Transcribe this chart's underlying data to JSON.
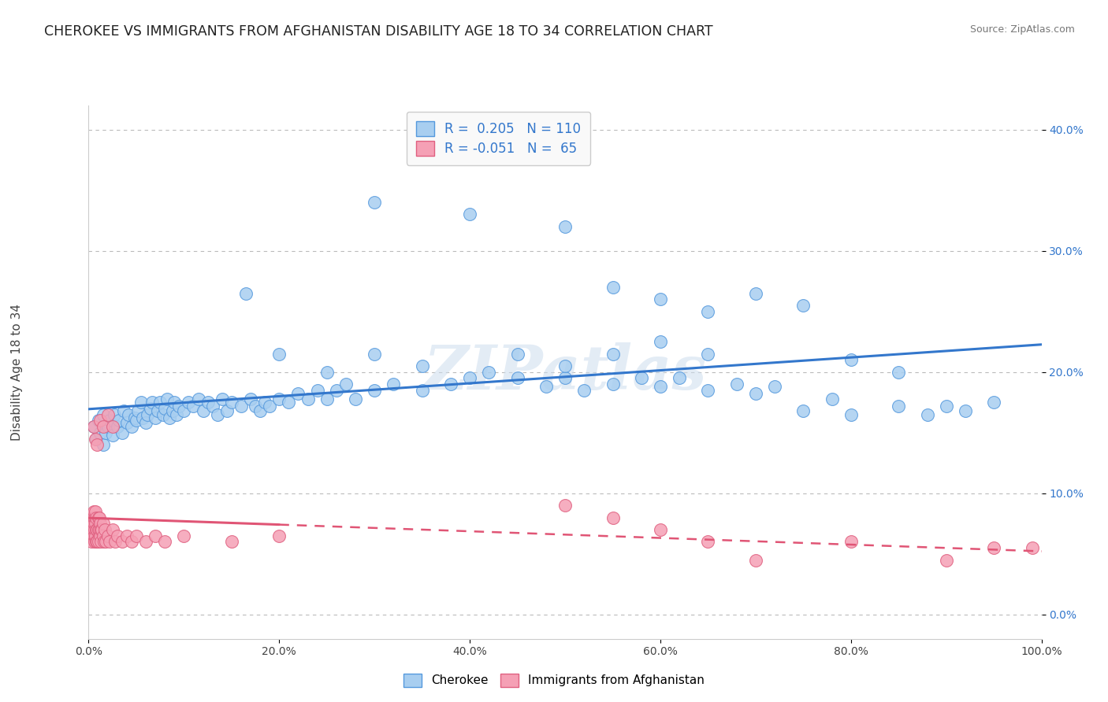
{
  "title": "CHEROKEE VS IMMIGRANTS FROM AFGHANISTAN DISABILITY AGE 18 TO 34 CORRELATION CHART",
  "source": "Source: ZipAtlas.com",
  "ylabel": "Disability Age 18 to 34",
  "r_cherokee": 0.205,
  "n_cherokee": 110,
  "r_afghanistan": -0.051,
  "n_afghanistan": 65,
  "xlim": [
    0.0,
    1.0
  ],
  "ylim": [
    -0.02,
    0.42
  ],
  "xticks": [
    0.0,
    0.2,
    0.4,
    0.6,
    0.8,
    1.0
  ],
  "yticks": [
    0.0,
    0.1,
    0.2,
    0.3,
    0.4
  ],
  "color_cherokee": "#a8cef0",
  "color_cherokee_edge": "#5599dd",
  "color_cherokee_line": "#3377cc",
  "color_afghanistan": "#f5a0b5",
  "color_afghanistan_edge": "#e06080",
  "color_afghanistan_line": "#e05575",
  "background": "#ffffff",
  "grid_color": "#bbbbbb",
  "title_color": "#222222",
  "tick_color": "#4488cc",
  "cherokee_x": [
    0.005,
    0.008,
    0.01,
    0.012,
    0.015,
    0.015,
    0.018,
    0.02,
    0.022,
    0.025,
    0.027,
    0.03,
    0.032,
    0.035,
    0.037,
    0.04,
    0.042,
    0.045,
    0.048,
    0.05,
    0.052,
    0.055,
    0.057,
    0.06,
    0.062,
    0.065,
    0.067,
    0.07,
    0.072,
    0.075,
    0.078,
    0.08,
    0.082,
    0.085,
    0.088,
    0.09,
    0.092,
    0.095,
    0.1,
    0.105,
    0.11,
    0.115,
    0.12,
    0.125,
    0.13,
    0.135,
    0.14,
    0.145,
    0.15,
    0.16,
    0.165,
    0.17,
    0.175,
    0.18,
    0.185,
    0.19,
    0.2,
    0.21,
    0.22,
    0.23,
    0.24,
    0.25,
    0.26,
    0.27,
    0.28,
    0.3,
    0.32,
    0.35,
    0.38,
    0.4,
    0.42,
    0.45,
    0.48,
    0.5,
    0.52,
    0.55,
    0.58,
    0.6,
    0.62,
    0.65,
    0.68,
    0.7,
    0.72,
    0.75,
    0.78,
    0.8,
    0.85,
    0.88,
    0.9,
    0.92,
    0.95,
    0.3,
    0.35,
    0.2,
    0.25,
    0.45,
    0.5,
    0.55,
    0.6,
    0.65,
    0.7,
    0.75,
    0.8,
    0.85,
    0.3,
    0.4,
    0.5,
    0.55,
    0.6,
    0.65
  ],
  "cherokee_y": [
    0.155,
    0.145,
    0.16,
    0.15,
    0.14,
    0.165,
    0.15,
    0.155,
    0.16,
    0.148,
    0.165,
    0.155,
    0.16,
    0.15,
    0.168,
    0.158,
    0.165,
    0.155,
    0.162,
    0.16,
    0.168,
    0.175,
    0.162,
    0.158,
    0.165,
    0.17,
    0.175,
    0.162,
    0.168,
    0.175,
    0.165,
    0.17,
    0.178,
    0.162,
    0.168,
    0.175,
    0.165,
    0.172,
    0.168,
    0.175,
    0.172,
    0.178,
    0.168,
    0.175,
    0.172,
    0.165,
    0.178,
    0.168,
    0.175,
    0.172,
    0.265,
    0.178,
    0.172,
    0.168,
    0.175,
    0.172,
    0.178,
    0.175,
    0.182,
    0.178,
    0.185,
    0.178,
    0.185,
    0.19,
    0.178,
    0.185,
    0.19,
    0.185,
    0.19,
    0.195,
    0.2,
    0.195,
    0.188,
    0.195,
    0.185,
    0.19,
    0.195,
    0.188,
    0.195,
    0.185,
    0.19,
    0.182,
    0.188,
    0.168,
    0.178,
    0.165,
    0.172,
    0.165,
    0.172,
    0.168,
    0.175,
    0.215,
    0.205,
    0.215,
    0.2,
    0.215,
    0.205,
    0.215,
    0.225,
    0.215,
    0.265,
    0.255,
    0.21,
    0.2,
    0.34,
    0.33,
    0.32,
    0.27,
    0.26,
    0.25
  ],
  "afghanistan_x": [
    0.002,
    0.003,
    0.003,
    0.004,
    0.004,
    0.005,
    0.005,
    0.005,
    0.006,
    0.006,
    0.006,
    0.007,
    0.007,
    0.007,
    0.008,
    0.008,
    0.008,
    0.009,
    0.009,
    0.01,
    0.01,
    0.01,
    0.011,
    0.011,
    0.012,
    0.012,
    0.013,
    0.013,
    0.014,
    0.015,
    0.015,
    0.016,
    0.017,
    0.018,
    0.02,
    0.022,
    0.025,
    0.028,
    0.03,
    0.035,
    0.04,
    0.045,
    0.05,
    0.06,
    0.07,
    0.08,
    0.1,
    0.15,
    0.2,
    0.5,
    0.55,
    0.6,
    0.65,
    0.7,
    0.8,
    0.9,
    0.95,
    0.99,
    0.005,
    0.007,
    0.009,
    0.012,
    0.015,
    0.02,
    0.025
  ],
  "afghanistan_y": [
    0.065,
    0.075,
    0.06,
    0.07,
    0.08,
    0.065,
    0.075,
    0.085,
    0.07,
    0.06,
    0.08,
    0.065,
    0.075,
    0.085,
    0.07,
    0.06,
    0.08,
    0.07,
    0.06,
    0.07,
    0.08,
    0.06,
    0.07,
    0.08,
    0.065,
    0.075,
    0.07,
    0.06,
    0.07,
    0.065,
    0.075,
    0.06,
    0.07,
    0.06,
    0.065,
    0.06,
    0.07,
    0.06,
    0.065,
    0.06,
    0.065,
    0.06,
    0.065,
    0.06,
    0.065,
    0.06,
    0.065,
    0.06,
    0.065,
    0.09,
    0.08,
    0.07,
    0.06,
    0.045,
    0.06,
    0.045,
    0.055,
    0.055,
    0.155,
    0.145,
    0.14,
    0.16,
    0.155,
    0.165,
    0.155
  ],
  "watermark": "ZIPatlas",
  "title_fontsize": 12.5,
  "axis_label_fontsize": 11,
  "tick_fontsize": 10,
  "legend_fontsize": 12
}
